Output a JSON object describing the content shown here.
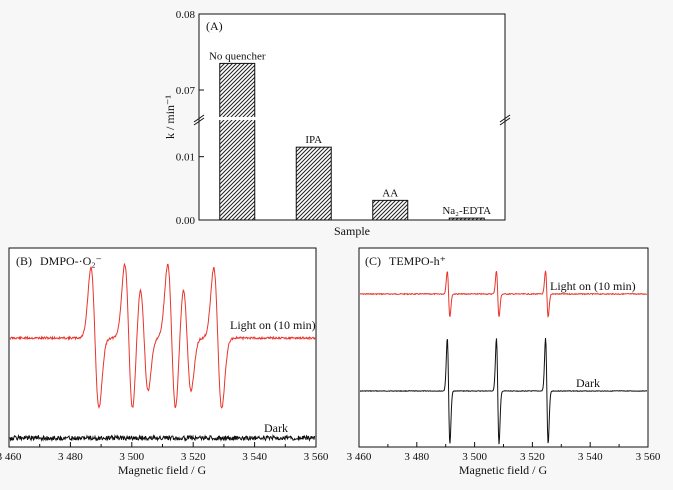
{
  "chart_data": [
    {
      "panel_label": "(A)",
      "type": "bar",
      "xlabel": "Sample",
      "ylabel": "k / min⁻¹",
      "axis_break": true,
      "ylim_lower": [
        0,
        0.015
      ],
      "ylim_upper": [
        0.065,
        0.08
      ],
      "yticks_lower": [
        "0.00",
        "0.01"
      ],
      "yticks_upper": [
        "0.07",
        "0.08"
      ],
      "yticks_lower_values": [
        0,
        0.01
      ],
      "yticks_upper_values": [
        0.07,
        0.08
      ],
      "categories": [
        "No quencher",
        "IPA",
        "AA",
        "Na₂-EDTA"
      ],
      "values": [
        0.0735,
        0.0115,
        0.0031,
        0.0003
      ],
      "bar_pattern": "diagonal-hatch",
      "grid": false
    },
    {
      "panel_label": "(B)",
      "title": "DMPO-·O₂⁻",
      "type": "line",
      "xlabel": "Magnetic field / G",
      "xlim": [
        3460,
        3560
      ],
      "xticks": [
        "3 460",
        "3 480",
        "3 500",
        "3 520",
        "3 540",
        "3 560"
      ],
      "xtick_values": [
        3460,
        3480,
        3500,
        3520,
        3540,
        3560
      ],
      "series": [
        {
          "name": "Light on (10 min)",
          "color": "#e8352b",
          "peaks": [
            3488,
            3499,
            3504,
            3513,
            3518,
            3528
          ],
          "amplitudes": [
            1.0,
            1.05,
            0.75,
            1.05,
            0.75,
            1.0
          ]
        },
        {
          "name": "Dark",
          "color": "#111111",
          "peaks": [],
          "amplitudes": []
        }
      ],
      "grid": false
    },
    {
      "panel_label": "(C)",
      "title": "TEMPO-h⁺",
      "type": "line",
      "xlabel": "Magnetic field / G",
      "xlim": [
        3460,
        3560
      ],
      "xticks": [
        "3 460",
        "3 480",
        "3 500",
        "3 520",
        "3 540",
        "3 560"
      ],
      "xtick_values": [
        3460,
        3480,
        3500,
        3520,
        3540,
        3560
      ],
      "series": [
        {
          "name": "Light on (10 min)",
          "color": "#e8352b",
          "peaks": [
            3491,
            3508,
            3525
          ],
          "amplitudes": [
            0.5,
            0.5,
            0.5
          ]
        },
        {
          "name": "Dark",
          "color": "#111111",
          "peaks": [
            3491,
            3508,
            3525
          ],
          "amplitudes": [
            1.0,
            1.0,
            1.0
          ]
        }
      ],
      "grid": false
    }
  ]
}
